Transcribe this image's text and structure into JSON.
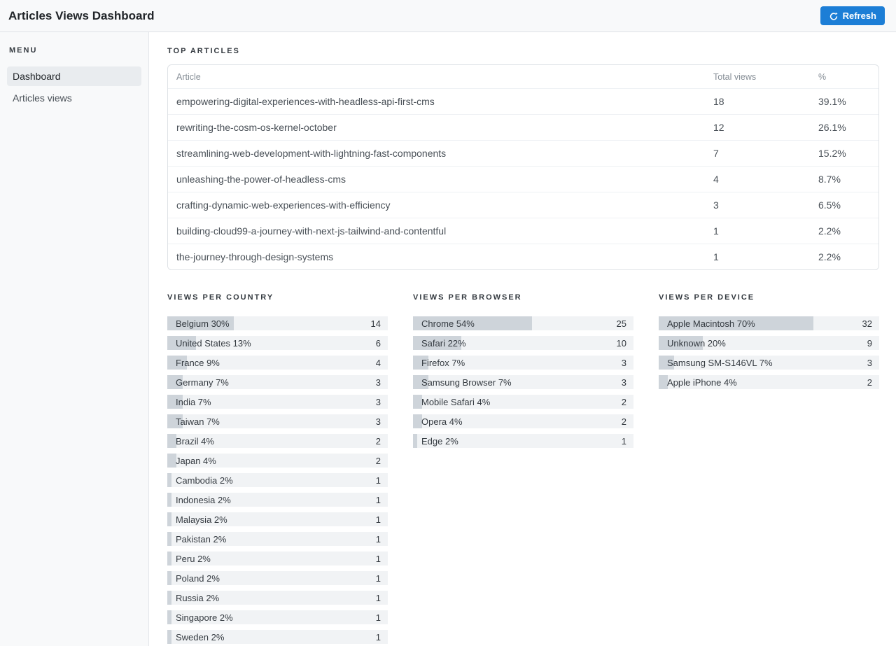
{
  "header": {
    "title": "Articles Views Dashboard",
    "refresh_label": "Refresh"
  },
  "sidebar": {
    "menu_label": "MENU",
    "items": [
      {
        "label": "Dashboard",
        "active": true
      },
      {
        "label": "Articles views",
        "active": false
      }
    ]
  },
  "top_articles": {
    "title": "TOP ARTICLES",
    "columns": [
      "Article",
      "Total views",
      "%"
    ],
    "rows": [
      {
        "article": "empowering-digital-experiences-with-headless-api-first-cms",
        "views": "18",
        "pct": "39.1%"
      },
      {
        "article": "rewriting-the-cosm-os-kernel-october",
        "views": "12",
        "pct": "26.1%"
      },
      {
        "article": "streamlining-web-development-with-lightning-fast-components",
        "views": "7",
        "pct": "15.2%"
      },
      {
        "article": "unleashing-the-power-of-headless-cms",
        "views": "4",
        "pct": "8.7%"
      },
      {
        "article": "crafting-dynamic-web-experiences-with-efficiency",
        "views": "3",
        "pct": "6.5%"
      },
      {
        "article": "building-cloud99-a-journey-with-next-js-tailwind-and-contentful",
        "views": "1",
        "pct": "2.2%"
      },
      {
        "article": "the-journey-through-design-systems",
        "views": "1",
        "pct": "2.2%"
      }
    ]
  },
  "charts": [
    {
      "title": "VIEWS PER COUNTRY",
      "type": "bar",
      "bars": [
        {
          "label": "Belgium 30%",
          "pct": 30,
          "value": "14"
        },
        {
          "label": "United States 13%",
          "pct": 13,
          "value": "6"
        },
        {
          "label": "France 9%",
          "pct": 9,
          "value": "4"
        },
        {
          "label": "Germany 7%",
          "pct": 7,
          "value": "3"
        },
        {
          "label": "India 7%",
          "pct": 7,
          "value": "3"
        },
        {
          "label": "Taiwan 7%",
          "pct": 7,
          "value": "3"
        },
        {
          "label": "Brazil 4%",
          "pct": 4,
          "value": "2"
        },
        {
          "label": "Japan 4%",
          "pct": 4,
          "value": "2"
        },
        {
          "label": "Cambodia 2%",
          "pct": 2,
          "value": "1"
        },
        {
          "label": "Indonesia 2%",
          "pct": 2,
          "value": "1"
        },
        {
          "label": "Malaysia 2%",
          "pct": 2,
          "value": "1"
        },
        {
          "label": "Pakistan 2%",
          "pct": 2,
          "value": "1"
        },
        {
          "label": "Peru 2%",
          "pct": 2,
          "value": "1"
        },
        {
          "label": "Poland 2%",
          "pct": 2,
          "value": "1"
        },
        {
          "label": "Russia 2%",
          "pct": 2,
          "value": "1"
        },
        {
          "label": "Singapore 2%",
          "pct": 2,
          "value": "1"
        },
        {
          "label": "Sweden 2%",
          "pct": 2,
          "value": "1"
        }
      ]
    },
    {
      "title": "VIEWS PER BROWSER",
      "type": "bar",
      "bars": [
        {
          "label": "Chrome 54%",
          "pct": 54,
          "value": "25"
        },
        {
          "label": "Safari 22%",
          "pct": 22,
          "value": "10"
        },
        {
          "label": "Firefox 7%",
          "pct": 7,
          "value": "3"
        },
        {
          "label": "Samsung Browser 7%",
          "pct": 7,
          "value": "3"
        },
        {
          "label": "Mobile Safari 4%",
          "pct": 4,
          "value": "2"
        },
        {
          "label": "Opera 4%",
          "pct": 4,
          "value": "2"
        },
        {
          "label": "Edge 2%",
          "pct": 2,
          "value": "1"
        }
      ]
    },
    {
      "title": "VIEWS PER DEVICE",
      "type": "bar",
      "bars": [
        {
          "label": "Apple Macintosh 70%",
          "pct": 70,
          "value": "32"
        },
        {
          "label": "Unknown 20%",
          "pct": 20,
          "value": "9"
        },
        {
          "label": "Samsung SM-S146VL 7%",
          "pct": 7,
          "value": "3"
        },
        {
          "label": "Apple iPhone 4%",
          "pct": 4,
          "value": "2"
        }
      ]
    }
  ],
  "colors": {
    "accent_blue": "#1c7ed6",
    "bar_fill": "#ced4da",
    "bar_track": "#f1f3f5",
    "selected_item_bg": "#e9ecef",
    "header_bg": "#f8f9fa"
  },
  "icons": {
    "refresh": "refresh-icon"
  }
}
